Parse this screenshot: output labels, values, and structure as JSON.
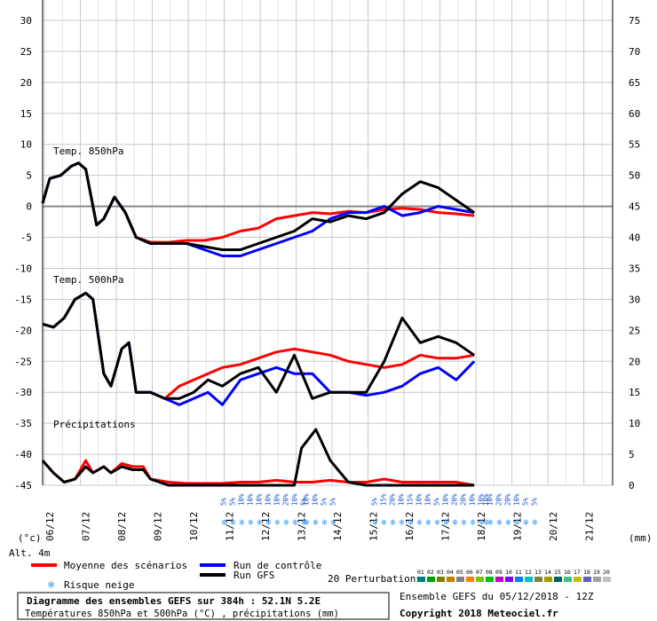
{
  "chart_data": {
    "type": "line",
    "x": [
      "06/12",
      "07/12",
      "08/12",
      "09/12",
      "10/12",
      "11/12",
      "12/12",
      "13/12",
      "14/12",
      "15/12",
      "16/12",
      "17/12",
      "18/12",
      "19/12",
      "20/12",
      "21/12"
    ],
    "left_axis": {
      "ticks": [
        30,
        25,
        20,
        15,
        10,
        5,
        0,
        -5,
        -10,
        -15,
        -20,
        -25,
        -30,
        -35,
        -40,
        -45
      ],
      "unit": "(°c)",
      "ylim": [
        -45,
        30
      ]
    },
    "right_axis": {
      "ticks": [
        75,
        70,
        65,
        60,
        55,
        50,
        45,
        40,
        35,
        30,
        25,
        20,
        15,
        10,
        5,
        0
      ],
      "unit": "(mm)",
      "ylim": [
        0,
        75
      ]
    },
    "grid": true,
    "panels": [
      {
        "label": "Temp. 850hPa"
      },
      {
        "label": "Temp. 500hPa"
      },
      {
        "label": "Précipitations"
      }
    ],
    "series": [
      {
        "name": "Moyenne des scénarios",
        "panel": "Temp. 850hPa",
        "color": "#ff0000",
        "points": [
          [
            0,
            0.5
          ],
          [
            0.2,
            4.5
          ],
          [
            0.5,
            5
          ],
          [
            0.8,
            6.5
          ],
          [
            1,
            7
          ],
          [
            1.2,
            6
          ],
          [
            1.5,
            -3
          ],
          [
            1.7,
            -2
          ],
          [
            2,
            1.5
          ],
          [
            2.3,
            -1
          ],
          [
            2.6,
            -5
          ],
          [
            3,
            -5.8
          ],
          [
            3.5,
            -5.8
          ],
          [
            4,
            -5.5
          ],
          [
            4.5,
            -5.5
          ],
          [
            5,
            -5
          ],
          [
            5.5,
            -4
          ],
          [
            6,
            -3.5
          ],
          [
            6.5,
            -2
          ],
          [
            7,
            -1.5
          ],
          [
            7.5,
            -1
          ],
          [
            8,
            -1.2
          ],
          [
            8.5,
            -0.8
          ],
          [
            9,
            -1
          ],
          [
            9.5,
            -0.5
          ],
          [
            10,
            -0.3
          ],
          [
            10.5,
            -0.5
          ],
          [
            11,
            -1
          ],
          [
            11.5,
            -1.2
          ],
          [
            12,
            -1.5
          ]
        ]
      },
      {
        "name": "Run de contrôle",
        "panel": "Temp. 850hPa",
        "color": "#0000ff",
        "points": [
          [
            0,
            0.5
          ],
          [
            0.2,
            4.5
          ],
          [
            0.5,
            5
          ],
          [
            0.8,
            6.5
          ],
          [
            1,
            7
          ],
          [
            1.2,
            6
          ],
          [
            1.5,
            -3
          ],
          [
            1.7,
            -2
          ],
          [
            2,
            1.5
          ],
          [
            2.3,
            -1
          ],
          [
            2.6,
            -5
          ],
          [
            3,
            -6
          ],
          [
            3.5,
            -6
          ],
          [
            4,
            -6
          ],
          [
            4.5,
            -7
          ],
          [
            5,
            -8
          ],
          [
            5.5,
            -8
          ],
          [
            6,
            -7
          ],
          [
            6.5,
            -6
          ],
          [
            7,
            -5
          ],
          [
            7.5,
            -4
          ],
          [
            8,
            -2
          ],
          [
            8.5,
            -1
          ],
          [
            9,
            -1
          ],
          [
            9.5,
            0
          ],
          [
            10,
            -1.5
          ],
          [
            10.5,
            -1
          ],
          [
            11,
            0
          ],
          [
            11.5,
            -0.5
          ],
          [
            12,
            -1
          ]
        ]
      },
      {
        "name": "Run GFS",
        "panel": "Temp. 850hPa",
        "color": "#000000",
        "points": [
          [
            0,
            0.5
          ],
          [
            0.2,
            4.5
          ],
          [
            0.5,
            5
          ],
          [
            0.8,
            6.5
          ],
          [
            1,
            7
          ],
          [
            1.2,
            6
          ],
          [
            1.5,
            -3
          ],
          [
            1.7,
            -2
          ],
          [
            2,
            1.5
          ],
          [
            2.3,
            -1
          ],
          [
            2.6,
            -5
          ],
          [
            3,
            -6
          ],
          [
            3.5,
            -6
          ],
          [
            4,
            -6
          ],
          [
            4.5,
            -6.5
          ],
          [
            5,
            -7
          ],
          [
            5.5,
            -7
          ],
          [
            6,
            -6
          ],
          [
            6.5,
            -5
          ],
          [
            7,
            -4
          ],
          [
            7.5,
            -2
          ],
          [
            8,
            -2.5
          ],
          [
            8.5,
            -1.5
          ],
          [
            9,
            -2
          ],
          [
            9.5,
            -1
          ],
          [
            10,
            2
          ],
          [
            10.5,
            4
          ],
          [
            11,
            3
          ],
          [
            11.5,
            1
          ],
          [
            12,
            -1
          ]
        ]
      },
      {
        "name": "Moyenne des scénarios",
        "panel": "Temp. 500hPa",
        "color": "#ff0000",
        "points": [
          [
            0,
            -19
          ],
          [
            0.3,
            -19.5
          ],
          [
            0.6,
            -18
          ],
          [
            0.9,
            -15
          ],
          [
            1.2,
            -14
          ],
          [
            1.4,
            -15
          ],
          [
            1.7,
            -27
          ],
          [
            1.9,
            -29
          ],
          [
            2.2,
            -23
          ],
          [
            2.4,
            -22
          ],
          [
            2.6,
            -30
          ],
          [
            3,
            -30
          ],
          [
            3.4,
            -31
          ],
          [
            3.8,
            -29
          ],
          [
            4.2,
            -28
          ],
          [
            4.6,
            -27
          ],
          [
            5,
            -26
          ],
          [
            5.5,
            -25.5
          ],
          [
            6,
            -24.5
          ],
          [
            6.5,
            -23.5
          ],
          [
            7,
            -23
          ],
          [
            7.5,
            -23.5
          ],
          [
            8,
            -24
          ],
          [
            8.5,
            -25
          ],
          [
            9,
            -25.5
          ],
          [
            9.5,
            -26
          ],
          [
            10,
            -25.5
          ],
          [
            10.5,
            -24
          ],
          [
            11,
            -24.5
          ],
          [
            11.5,
            -24.5
          ],
          [
            12,
            -24
          ]
        ]
      },
      {
        "name": "Run de contrôle",
        "panel": "Temp. 500hPa",
        "color": "#0000ff",
        "points": [
          [
            0,
            -19
          ],
          [
            0.3,
            -19.5
          ],
          [
            0.6,
            -18
          ],
          [
            0.9,
            -15
          ],
          [
            1.2,
            -14
          ],
          [
            1.4,
            -15
          ],
          [
            1.7,
            -27
          ],
          [
            1.9,
            -29
          ],
          [
            2.2,
            -23
          ],
          [
            2.4,
            -22
          ],
          [
            2.6,
            -30
          ],
          [
            3,
            -30
          ],
          [
            3.4,
            -31
          ],
          [
            3.8,
            -32
          ],
          [
            4.2,
            -31
          ],
          [
            4.6,
            -30
          ],
          [
            5,
            -32
          ],
          [
            5.5,
            -28
          ],
          [
            6,
            -27
          ],
          [
            6.5,
            -26
          ],
          [
            7,
            -27
          ],
          [
            7.5,
            -27
          ],
          [
            8,
            -30
          ],
          [
            8.5,
            -30
          ],
          [
            9,
            -30.5
          ],
          [
            9.5,
            -30
          ],
          [
            10,
            -29
          ],
          [
            10.5,
            -27
          ],
          [
            11,
            -26
          ],
          [
            11.5,
            -28
          ],
          [
            12,
            -25
          ]
        ]
      },
      {
        "name": "Run GFS",
        "panel": "Temp. 500hPa",
        "color": "#000000",
        "points": [
          [
            0,
            -19
          ],
          [
            0.3,
            -19.5
          ],
          [
            0.6,
            -18
          ],
          [
            0.9,
            -15
          ],
          [
            1.2,
            -14
          ],
          [
            1.4,
            -15
          ],
          [
            1.7,
            -27
          ],
          [
            1.9,
            -29
          ],
          [
            2.2,
            -23
          ],
          [
            2.4,
            -22
          ],
          [
            2.6,
            -30
          ],
          [
            3,
            -30
          ],
          [
            3.4,
            -31
          ],
          [
            3.8,
            -31
          ],
          [
            4.2,
            -30
          ],
          [
            4.6,
            -28
          ],
          [
            5,
            -29
          ],
          [
            5.5,
            -27
          ],
          [
            6,
            -26
          ],
          [
            6.5,
            -30
          ],
          [
            7,
            -24
          ],
          [
            7.5,
            -31
          ],
          [
            8,
            -30
          ],
          [
            8.5,
            -30
          ],
          [
            9,
            -30
          ],
          [
            9.5,
            -25
          ],
          [
            10,
            -18
          ],
          [
            10.5,
            -22
          ],
          [
            11,
            -21
          ],
          [
            11.5,
            -22
          ],
          [
            12,
            -24
          ]
        ]
      },
      {
        "name": "Moyenne des scénarios",
        "panel": "Précipitations",
        "color": "#ff0000",
        "points": [
          [
            0,
            4
          ],
          [
            0.3,
            2
          ],
          [
            0.6,
            0.5
          ],
          [
            0.9,
            1
          ],
          [
            1.2,
            4
          ],
          [
            1.4,
            2
          ],
          [
            1.7,
            3
          ],
          [
            1.9,
            2
          ],
          [
            2.2,
            3.5
          ],
          [
            2.5,
            3
          ],
          [
            2.8,
            3
          ],
          [
            3,
            1
          ],
          [
            3.5,
            0.5
          ],
          [
            4,
            0.3
          ],
          [
            4.5,
            0.3
          ],
          [
            5,
            0.3
          ],
          [
            5.5,
            0.5
          ],
          [
            6,
            0.5
          ],
          [
            6.5,
            0.8
          ],
          [
            7,
            0.5
          ],
          [
            7.5,
            0.5
          ],
          [
            8,
            0.8
          ],
          [
            8.5,
            0.5
          ],
          [
            9,
            0.5
          ],
          [
            9.5,
            1
          ],
          [
            10,
            0.5
          ],
          [
            10.5,
            0.5
          ],
          [
            11,
            0.5
          ],
          [
            11.5,
            0.5
          ],
          [
            12,
            0
          ]
        ]
      },
      {
        "name": "Run GFS",
        "panel": "Précipitations",
        "color": "#000000",
        "points": [
          [
            0,
            4
          ],
          [
            0.3,
            2
          ],
          [
            0.6,
            0.5
          ],
          [
            0.9,
            1
          ],
          [
            1.2,
            3
          ],
          [
            1.4,
            2
          ],
          [
            1.7,
            3
          ],
          [
            1.9,
            2
          ],
          [
            2.2,
            3
          ],
          [
            2.5,
            2.5
          ],
          [
            2.8,
            2.5
          ],
          [
            3,
            1
          ],
          [
            3.5,
            0
          ],
          [
            4,
            0
          ],
          [
            4.5,
            0
          ],
          [
            5,
            0
          ],
          [
            5.5,
            0
          ],
          [
            6,
            0
          ],
          [
            6.5,
            0
          ],
          [
            7,
            0
          ],
          [
            7.2,
            6
          ],
          [
            7.6,
            9
          ],
          [
            8,
            4
          ],
          [
            8.5,
            0.5
          ],
          [
            9,
            0
          ],
          [
            9.5,
            0
          ],
          [
            10,
            0
          ],
          [
            10.5,
            0
          ],
          [
            11,
            0
          ],
          [
            11.5,
            0
          ],
          [
            12,
            0
          ]
        ]
      }
    ],
    "snow_risk": [
      {
        "day_offset": 5.0,
        "values": [
          "5%",
          "5%",
          "10%",
          "10%",
          "10%",
          "10%",
          "10%",
          "20%",
          "10%",
          "5%"
        ]
      },
      {
        "day_offset": 7.3,
        "values": [
          "10%",
          "10%",
          "5%",
          "5%"
        ]
      },
      {
        "day_offset": 9.2,
        "values": [
          "5%",
          "15%",
          "20%",
          "10%",
          "15%",
          "10%",
          "10%",
          "5%",
          "10%",
          "20%",
          "20%",
          "10%",
          "10%",
          "10%",
          "20%",
          "20%",
          "10%",
          "5%",
          "5%"
        ]
      },
      {
        "day_offset": 12.3,
        "values": [
          "10%"
        ]
      }
    ]
  },
  "altitude_label": "Alt. 4m",
  "legend": {
    "mean": "Moyenne des scénarios",
    "control": "Run de contrôle",
    "gfs": "Run GFS",
    "snow": "Risque neige",
    "perturbations": "20 Perturbations",
    "perturbation_ids": [
      "01",
      "02",
      "03",
      "04",
      "05",
      "06",
      "07",
      "08",
      "09",
      "10",
      "11",
      "12",
      "13",
      "14",
      "15",
      "16",
      "17",
      "18",
      "19",
      "20"
    ],
    "perturbation_colors": [
      "#008080",
      "#00a000",
      "#808000",
      "#c08000",
      "#808080",
      "#ff8000",
      "#80c000",
      "#00c000",
      "#c000c0",
      "#8000ff",
      "#0080ff",
      "#00c0c0",
      "#808040",
      "#a0a000",
      "#006060",
      "#40c080",
      "#c0c000",
      "#6060c0",
      "#a0a0a0",
      "#c0c0c0"
    ]
  },
  "title_box": {
    "line1": "Diagramme des ensembles GEFS sur 384h : 52.1N 5.2E",
    "line2": "Températures 850hPa et 500hPa (°C) , précipitations (mm)"
  },
  "footer": {
    "run": "Ensemble GEFS du 05/12/2018 - 12Z",
    "copyright": "Copyright 2018 Meteociel.fr"
  }
}
